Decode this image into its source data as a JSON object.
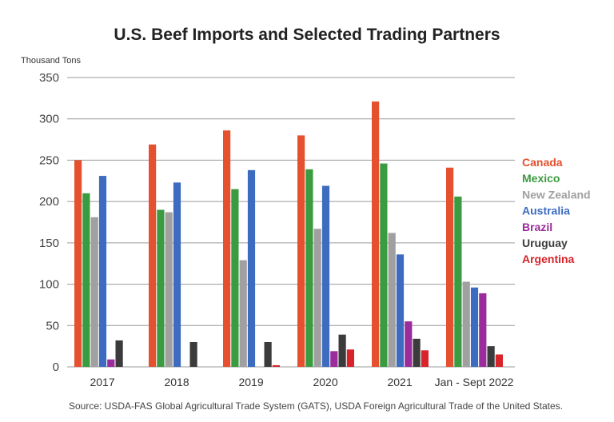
{
  "chart_data": {
    "type": "bar",
    "title": "U.S. Beef Imports and Selected Trading Partners",
    "ylabel": "Thousand Tons",
    "xlabel": "",
    "ylim": [
      0,
      350
    ],
    "yticks": [
      0,
      50,
      100,
      150,
      200,
      250,
      300,
      350
    ],
    "grid": true,
    "legend_position": "right",
    "categories": [
      "2017",
      "2018",
      "2019",
      "2020",
      "2021",
      "Jan - Sept 2022"
    ],
    "series": [
      {
        "name": "Canada",
        "color": "#e5502e",
        "values": [
          250,
          269,
          286,
          280,
          321,
          241
        ]
      },
      {
        "name": "Mexico",
        "color": "#3a9b40",
        "values": [
          210,
          190,
          215,
          239,
          246,
          206
        ]
      },
      {
        "name": "New Zealand",
        "color": "#a0a0a0",
        "values": [
          181,
          187,
          129,
          167,
          162,
          103
        ]
      },
      {
        "name": "Australia",
        "color": "#3d6bc0",
        "values": [
          231,
          223,
          238,
          219,
          136,
          96
        ]
      },
      {
        "name": "Brazil",
        "color": "#9a2c9c",
        "values": [
          9,
          0,
          0,
          19,
          55,
          89
        ]
      },
      {
        "name": "Uruguay",
        "color": "#3b3b3b",
        "values": [
          32,
          30,
          30,
          39,
          34,
          25
        ]
      },
      {
        "name": "Argentina",
        "color": "#d8232a",
        "values": [
          0,
          0,
          2,
          21,
          20,
          15
        ]
      }
    ],
    "source": "Source: USDA-FAS Global Agricultural Trade System (GATS), USDA Foreign Agricultural Trade of the United States."
  }
}
